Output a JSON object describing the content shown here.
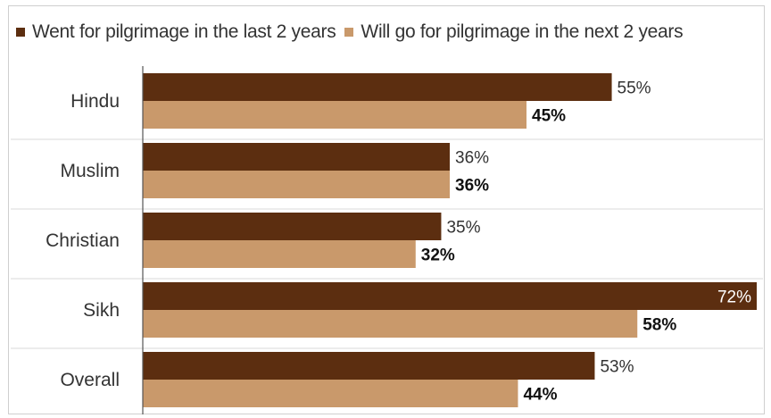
{
  "legend": {
    "items": [
      {
        "label": "Went for pilgrimage in the last 2 years",
        "color": "#5c2e10"
      },
      {
        "label": "Will go for pilgrimage in the next 2 years",
        "color": "#c9996b"
      }
    ]
  },
  "chart_data": {
    "type": "bar",
    "orientation": "horizontal",
    "categories": [
      "Hindu",
      "Muslim",
      "Christian",
      "Sikh",
      "Overall"
    ],
    "series": [
      {
        "name": "Went for pilgrimage in the last 2 years",
        "values": [
          55,
          36,
          35,
          72,
          53
        ],
        "labels": [
          "55%",
          "36%",
          "35%",
          "72%",
          "53%"
        ],
        "color": "#5c2e10"
      },
      {
        "name": "Will go for pilgrimage in the next 2 years",
        "values": [
          45,
          36,
          32,
          58,
          44
        ],
        "labels": [
          "45%",
          "36%",
          "32%",
          "58%",
          "44%"
        ],
        "color": "#c9996b"
      }
    ],
    "xlim": [
      0,
      72
    ],
    "legend_position": "top-left",
    "grid": false
  }
}
